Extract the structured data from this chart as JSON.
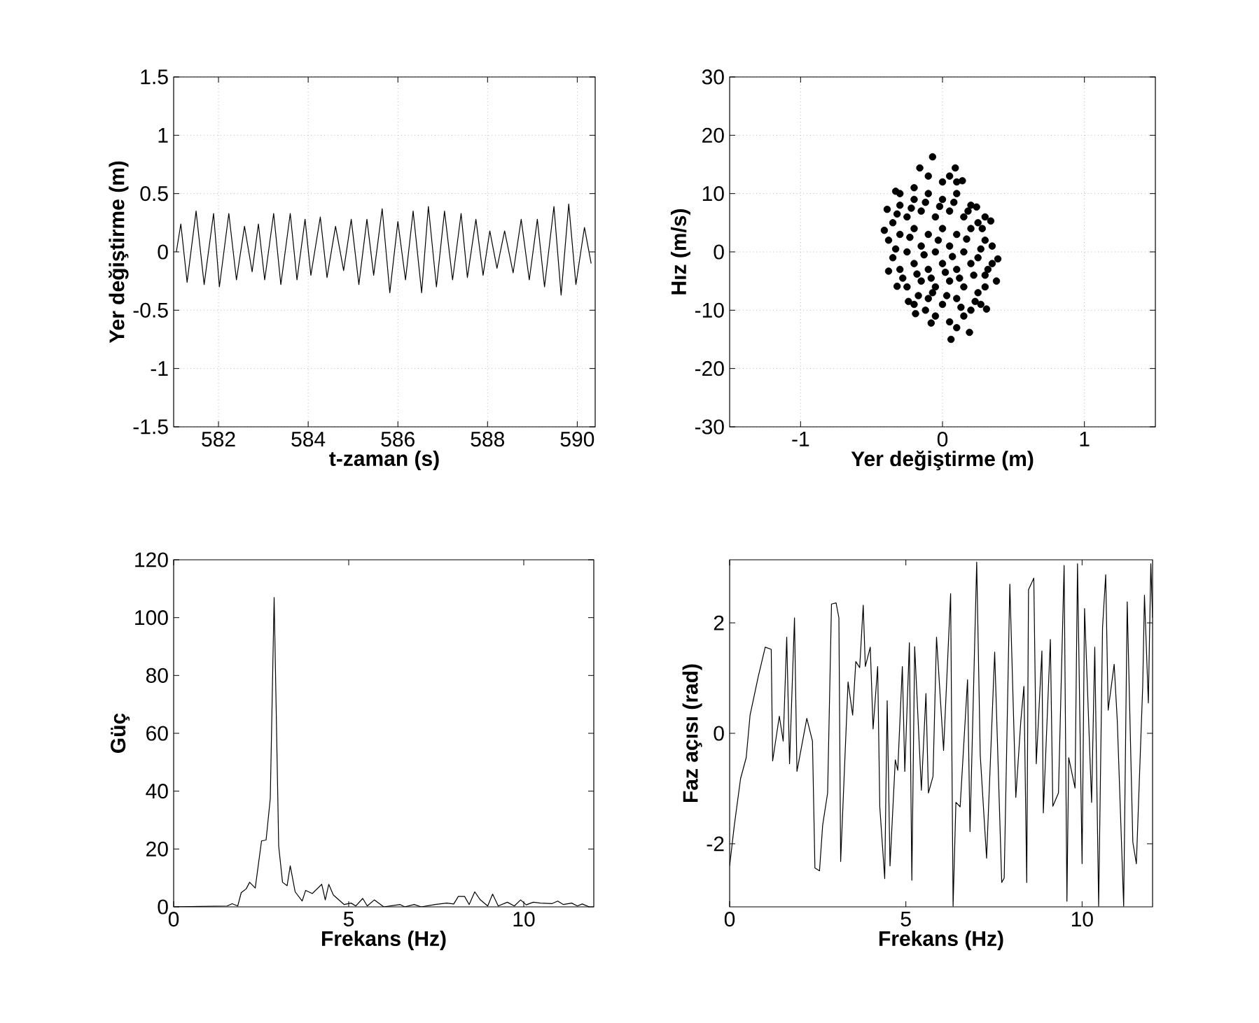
{
  "chart_data": [
    {
      "type": "line",
      "xlabel": "t-zaman (s)",
      "ylabel": "Yer değiştirme (m)",
      "xlim": [
        581,
        590.4
      ],
      "ylim": [
        -1.5,
        1.5
      ],
      "xticks": [
        582,
        584,
        586,
        588,
        590
      ],
      "yticks": [
        -1.5,
        -1,
        -0.5,
        0,
        0.5,
        1,
        1.5
      ],
      "grid": true,
      "series": [
        {
          "color": "#000000",
          "x": [
            581.06,
            581.16,
            581.3,
            581.5,
            581.68,
            581.89,
            582.02,
            582.23,
            582.4,
            582.58,
            582.75,
            582.89,
            583.03,
            583.23,
            583.39,
            583.6,
            583.75,
            583.93,
            584.06,
            584.27,
            584.42,
            584.61,
            584.79,
            584.96,
            585.13,
            585.31,
            585.46,
            585.65,
            585.82,
            586.0,
            586.17,
            586.34,
            586.53,
            586.68,
            586.86,
            587.04,
            587.22,
            587.41,
            587.55,
            587.74,
            587.9,
            588.05,
            588.21,
            588.38,
            588.57,
            588.75,
            588.93,
            589.11,
            589.27,
            589.48,
            589.64,
            589.81,
            589.97,
            590.16,
            590.31
          ],
          "values": [
            0,
            0.24,
            -0.26,
            0.35,
            -0.28,
            0.33,
            -0.3,
            0.33,
            -0.24,
            0.22,
            -0.17,
            0.24,
            -0.24,
            0.33,
            -0.28,
            0.33,
            -0.24,
            0.28,
            -0.2,
            0.3,
            -0.22,
            0.22,
            -0.16,
            0.28,
            -0.28,
            0.28,
            -0.2,
            0.37,
            -0.35,
            0.26,
            -0.24,
            0.35,
            -0.35,
            0.39,
            -0.3,
            0.35,
            -0.24,
            0.33,
            -0.22,
            0.28,
            -0.2,
            0.18,
            -0.14,
            0.18,
            -0.18,
            0.28,
            -0.24,
            0.28,
            -0.3,
            0.39,
            -0.37,
            0.41,
            -0.28,
            0.21,
            -0.1
          ]
        }
      ]
    },
    {
      "type": "scatter",
      "xlabel": "Yer değiştirme (m)",
      "ylabel": "Hız (m/s)",
      "xlim": [
        -1.5,
        1.5
      ],
      "ylim": [
        -30,
        30
      ],
      "xticks": [
        -1,
        0,
        1
      ],
      "yticks": [
        -30,
        -20,
        -10,
        0,
        10,
        20,
        30
      ],
      "grid": true,
      "series": [
        {
          "color": "#000000",
          "x": [
            -0.07,
            -0.16,
            0.09,
            -0.33,
            -0.39,
            -0.41,
            -0.38,
            -0.32,
            -0.24,
            -0.19,
            -0.08,
            0.06,
            0.19,
            0.31,
            0.38,
            0.39,
            0.34,
            0.24,
            0.14,
            -0.3,
            -0.2,
            -0.1,
            0,
            0.1,
            0.2,
            0.3,
            -0.35,
            -0.25,
            -0.15,
            -0.05,
            0.05,
            0.15,
            0.25,
            -0.38,
            -0.3,
            -0.2,
            -0.1,
            0,
            0.1,
            0.2,
            0.3,
            0.35,
            -0.35,
            -0.25,
            -0.15,
            -0.05,
            0.05,
            0.15,
            0.25,
            0.35,
            -0.3,
            -0.2,
            -0.1,
            0,
            0.1,
            0.2,
            0.3,
            -0.25,
            -0.15,
            -0.05,
            0.05,
            0.15,
            0.25,
            0.3,
            -0.2,
            -0.1,
            0,
            0.1,
            0.2,
            0.27,
            -0.05,
            0.05,
            0.15,
            -0.1,
            0,
            0.05,
            0.1,
            -0.2,
            -0.3,
            -0.32,
            -0.22,
            -0.12,
            -0.02,
            0.08,
            0.18,
            0.28,
            -0.33,
            -0.23,
            -0.13,
            -0.03,
            0.07,
            0.17,
            0.27,
            -0.28,
            -0.18,
            -0.08,
            0.02,
            0.12,
            0.22,
            0.32,
            -0.17,
            -0.07,
            0.03,
            0.13,
            0.23,
            -0.12,
            0.1
          ],
          "values": [
            16.3,
            14.4,
            14.4,
            10.4,
            7.3,
            3.7,
            -3.3,
            -5.9,
            -8.5,
            -10.6,
            -12.2,
            -15,
            -13.8,
            -9.8,
            -5,
            -1.2,
            5.3,
            7.7,
            12.2,
            8,
            9,
            10,
            9,
            10,
            8,
            6,
            5,
            6,
            7,
            6,
            7,
            6,
            5,
            2,
            3,
            4,
            3,
            4,
            3,
            4,
            2,
            1,
            -1,
            0,
            1,
            0,
            1,
            0,
            -1,
            -2,
            -3,
            -2,
            -3,
            -2,
            -3,
            -2,
            -4,
            -6,
            -5,
            -6,
            -5,
            -6,
            -7,
            -6,
            -9,
            -8,
            -9,
            -8,
            -10,
            -9,
            -11,
            -12,
            -11,
            13,
            12,
            13,
            12,
            11,
            10,
            6.5,
            7.5,
            8.5,
            7.8,
            8.5,
            7,
            4,
            0.5,
            2.5,
            -0.5,
            2,
            -0.8,
            2.2,
            0.5,
            -4.5,
            -3.8,
            -4.5,
            -3.5,
            -4.5,
            -4,
            -3,
            -7.5,
            -7,
            -7.5,
            -9.5,
            -8.5,
            -10,
            -13
          ]
        }
      ]
    },
    {
      "type": "line",
      "xlabel": "Frekans (Hz)",
      "ylabel": "Güç",
      "xlim": [
        0,
        12
      ],
      "ylim": [
        0,
        120
      ],
      "xticks": [
        0,
        5,
        10
      ],
      "yticks": [
        0,
        20,
        40,
        60,
        80,
        100,
        120
      ],
      "series": [
        {
          "color": "#000000",
          "x": [
            0,
            1.53,
            1.67,
            1.83,
            1.93,
            2.07,
            2.17,
            2.33,
            2.51,
            2.64,
            2.76,
            2.87,
            3.0,
            3.11,
            3.24,
            3.33,
            3.47,
            3.67,
            3.77,
            3.96,
            4.23,
            4.33,
            4.43,
            4.56,
            4.87,
            5.07,
            5.2,
            5.4,
            5.53,
            5.73,
            6.0,
            6.47,
            6.6,
            6.87,
            7.07,
            7.47,
            7.8,
            8.0,
            8.13,
            8.31,
            8.44,
            8.6,
            8.76,
            8.97,
            9.11,
            9.27,
            9.53,
            9.73,
            9.91,
            10.07,
            10.27,
            10.47,
            10.8,
            10.97,
            11.13,
            11.37,
            11.53,
            11.67,
            11.87
          ],
          "values": [
            0,
            0.3,
            1.1,
            0.3,
            4.9,
            6.2,
            8.5,
            6.5,
            22.8,
            23.1,
            37.5,
            107,
            21,
            8.5,
            7.3,
            14.2,
            5.2,
            2,
            5.7,
            4.6,
            7.8,
            2.4,
            7.8,
            4.1,
            0.8,
            1.3,
            0.3,
            2.9,
            0.3,
            2.4,
            0,
            0.8,
            0,
            0.8,
            0,
            0.8,
            1.3,
            1,
            3.6,
            3.6,
            0.8,
            5.2,
            2.4,
            0.3,
            4.4,
            0.3,
            1.6,
            0.3,
            2.4,
            0.7,
            1.6,
            1.3,
            1.1,
            2,
            0.8,
            1.3,
            0.3,
            1,
            0
          ]
        }
      ]
    },
    {
      "type": "line",
      "xlabel": "Frekans (Hz)",
      "ylabel": "Faz açısı (rad)",
      "xlim": [
        0,
        12
      ],
      "ylim": [
        -3.1416,
        3.1416
      ],
      "xticks": [
        0,
        5,
        10
      ],
      "yticks": [
        -2,
        0,
        2
      ],
      "series": [
        {
          "color": "#000000",
          "x": [
            0,
            0.13,
            0.31,
            0.47,
            0.58,
            0.81,
            1.01,
            1.18,
            1.22,
            1.41,
            1.52,
            1.62,
            1.7,
            1.84,
            1.91,
            2.19,
            2.35,
            2.42,
            2.55,
            2.64,
            2.78,
            2.89,
            3.02,
            3.1,
            3.15,
            3.36,
            3.49,
            3.58,
            3.69,
            3.79,
            3.85,
            3.99,
            4.07,
            4.2,
            4.26,
            4.4,
            4.47,
            4.55,
            4.7,
            4.77,
            4.9,
            4.97,
            5.1,
            5.17,
            5.25,
            5.44,
            5.57,
            5.64,
            5.77,
            5.87,
            6.07,
            6.27,
            6.34,
            6.42,
            6.54,
            6.75,
            6.82,
            7.01,
            7.11,
            7.29,
            7.52,
            7.72,
            7.79,
            7.95,
            8.12,
            8.26,
            8.35,
            8.43,
            8.48,
            8.63,
            8.7,
            8.86,
            8.9,
            9.1,
            9.17,
            9.33,
            9.49,
            9.57,
            9.62,
            9.8,
            9.87,
            10.0,
            10.07,
            10.27,
            10.36,
            10.47,
            10.58,
            10.67,
            10.74,
            10.91,
            11.0,
            11.18,
            11.28,
            11.44,
            11.54,
            11.72,
            11.77,
            11.88,
            11.95,
            12.0
          ],
          "values": [
            -2.4,
            -1.68,
            -0.82,
            -0.44,
            0.33,
            1.02,
            1.56,
            1.52,
            -0.5,
            0.31,
            -0.14,
            1.74,
            -0.55,
            2.09,
            -0.69,
            0.27,
            -0.14,
            -2.44,
            -2.49,
            -1.66,
            -1.08,
            2.34,
            2.36,
            2.09,
            -2.32,
            0.93,
            0.33,
            1.3,
            1.19,
            2.32,
            1.21,
            1.56,
            0.08,
            1.21,
            -1.33,
            -2.63,
            0.59,
            -2.4,
            -0.48,
            -0.67,
            1.21,
            -0.69,
            1.64,
            -2.66,
            1.57,
            -1.03,
            0.72,
            -1.08,
            -0.78,
            1.74,
            -0.31,
            2.53,
            -3.13,
            -1.25,
            -1.33,
            0.97,
            -1.78,
            3.1,
            -0.39,
            -2.26,
            1.47,
            -2.7,
            -2.62,
            2.7,
            -1.16,
            0.21,
            0.85,
            -2.7,
            2.6,
            2.81,
            -0.55,
            1.49,
            -1.44,
            1.7,
            -1.32,
            -1.08,
            3.04,
            -3.04,
            -0.44,
            -0.99,
            3.07,
            -2.36,
            2.26,
            -1.25,
            1.56,
            -3.13,
            1.91,
            2.87,
            0.42,
            1.25,
            0.21,
            -3.13,
            2.38,
            -1.97,
            -2.36,
            0.85,
            2.5,
            0.55,
            3.07,
            2.09
          ]
        }
      ]
    }
  ]
}
